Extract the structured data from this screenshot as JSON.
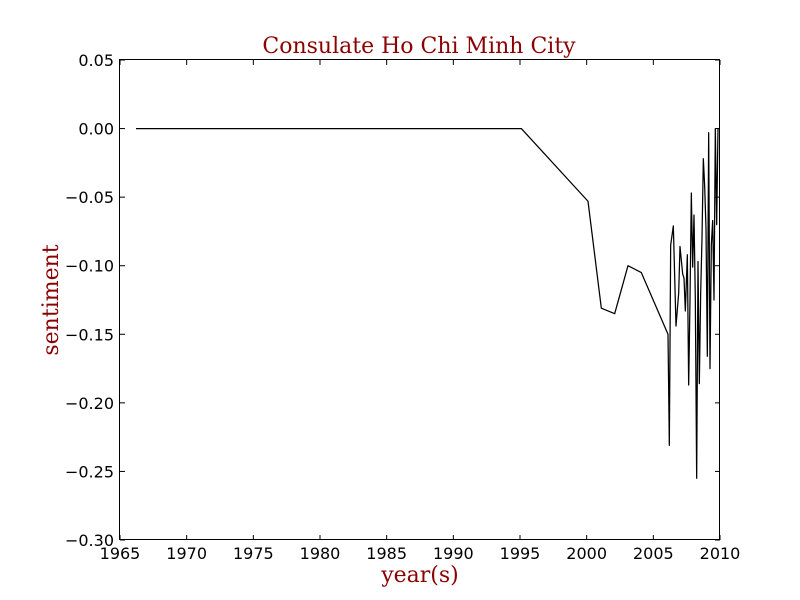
{
  "chart_data": {
    "type": "line",
    "title": "Consulate Ho Chi Minh City",
    "xlabel": "year(s)",
    "ylabel": "sentiment",
    "xlim": [
      1965,
      2010
    ],
    "ylim": [
      -0.3,
      0.05
    ],
    "grid": false,
    "x_ticks": [
      1965,
      1970,
      1975,
      1980,
      1985,
      1990,
      1995,
      2000,
      2005,
      2010
    ],
    "x_tick_labels": [
      "1965",
      "1970",
      "1975",
      "1980",
      "1985",
      "1990",
      "1995",
      "2000",
      "2005",
      "2010"
    ],
    "y_ticks": [
      0.05,
      0.0,
      -0.05,
      -0.1,
      -0.15,
      -0.2,
      -0.25,
      -0.3
    ],
    "y_tick_labels": [
      "0.05",
      "0.00",
      "−0.05",
      "−0.10",
      "−0.15",
      "−0.20",
      "−0.25",
      "−0.30"
    ],
    "colors": {
      "title": "#8b0000",
      "axis_label": "#8b0000",
      "line": "#000000"
    },
    "series": [
      {
        "x": [
          1966.2,
          1995.1,
          2000.1,
          2001.1,
          2002.1,
          2003.1,
          2004.1,
          2006.1,
          2006.2,
          2006.3,
          2006.5,
          2006.7,
          2006.9,
          2007.0,
          2007.2,
          2007.3,
          2007.4,
          2007.55,
          2007.65,
          2007.75,
          2007.85,
          2007.95,
          2008.05,
          2008.15,
          2008.25,
          2008.35,
          2008.45,
          2008.55,
          2008.65,
          2008.75,
          2008.85,
          2008.95,
          2009.05,
          2009.15,
          2009.25,
          2009.35,
          2009.45,
          2009.55,
          2009.65,
          2009.75,
          2009.85,
          2009.92
        ],
        "y": [
          0.0,
          0.0,
          -0.053,
          -0.131,
          -0.135,
          -0.1,
          -0.105,
          -0.15,
          -0.231,
          -0.085,
          -0.071,
          -0.144,
          -0.12,
          -0.086,
          -0.106,
          -0.109,
          -0.133,
          -0.092,
          -0.187,
          -0.125,
          -0.047,
          -0.101,
          -0.063,
          -0.125,
          -0.255,
          -0.097,
          -0.186,
          -0.12,
          -0.08,
          -0.022,
          -0.042,
          -0.073,
          -0.166,
          -0.003,
          -0.175,
          -0.085,
          -0.067,
          -0.125,
          0.0,
          -0.07,
          0.0,
          0.0
        ]
      }
    ]
  }
}
